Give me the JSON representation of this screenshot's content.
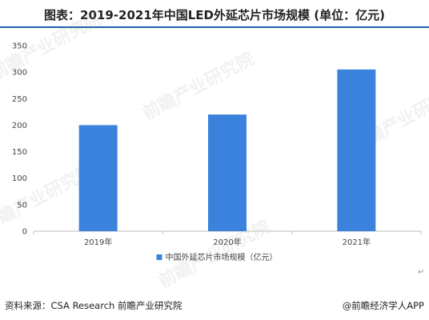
{
  "title": "图表：2019-2021年中国LED外延芯片市场规模 (单位：亿元)",
  "source": "资料来源：CSA Research 前瞻产业研究院",
  "brand": "@前瞻经济学人APP",
  "watermark_text": "前瞻产业研究院",
  "paragraph_mark": "↵",
  "colors": {
    "bar": "#3a82dc",
    "axis": "#bfbfbf",
    "title_rule": "#1f5fa8"
  },
  "chart_data": {
    "type": "bar",
    "title": "图表：2019-2021年中国LED外延芯片市场规模 (单位：亿元)",
    "categories": [
      "2019年",
      "2020年",
      "2021年"
    ],
    "series": [
      {
        "name": "中国外延芯片市场规模（亿元）",
        "values": [
          200,
          220,
          305
        ]
      }
    ],
    "xlabel": "",
    "ylabel": "",
    "ylim": [
      0,
      350
    ],
    "yticks": [
      0,
      50,
      100,
      150,
      200,
      250,
      300,
      350
    ],
    "grid": false,
    "legend": "bottom-center"
  }
}
